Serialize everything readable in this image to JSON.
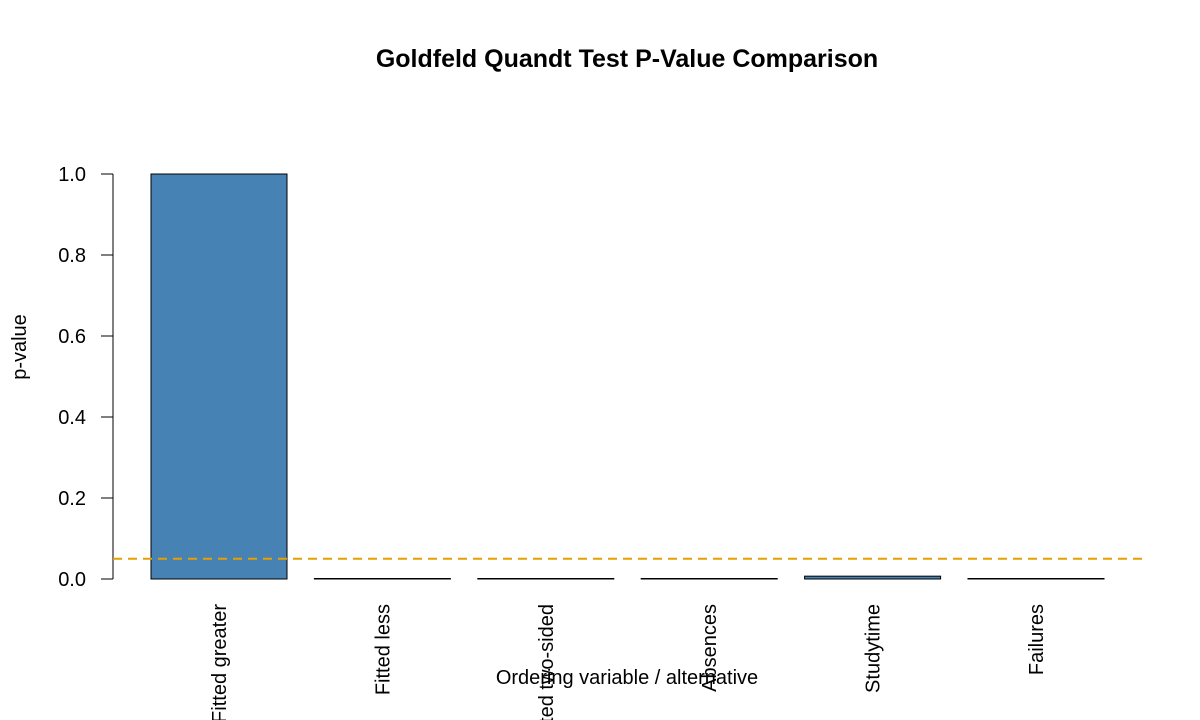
{
  "chart_data": {
    "type": "bar",
    "title": "Goldfeld Quandt Test P-Value Comparison",
    "xlabel": "Ordering variable / alternative",
    "ylabel": "p-value",
    "categories": [
      "Fitted greater",
      "Fitted less",
      "Fitted two-sided",
      "Absences",
      "Studytime",
      "Failures"
    ],
    "values": [
      1.0,
      0.0005,
      0.001,
      0.0005,
      0.007,
      0.0005
    ],
    "ylim": [
      0,
      1
    ],
    "yticks": [
      "0.0",
      "0.2",
      "0.4",
      "0.6",
      "0.8",
      "1.0"
    ],
    "reference_line": {
      "value": 0.05,
      "style": "dashed",
      "color": "#E69F00"
    },
    "bar_color": "#4682B4",
    "grid": false,
    "legend": "none"
  }
}
